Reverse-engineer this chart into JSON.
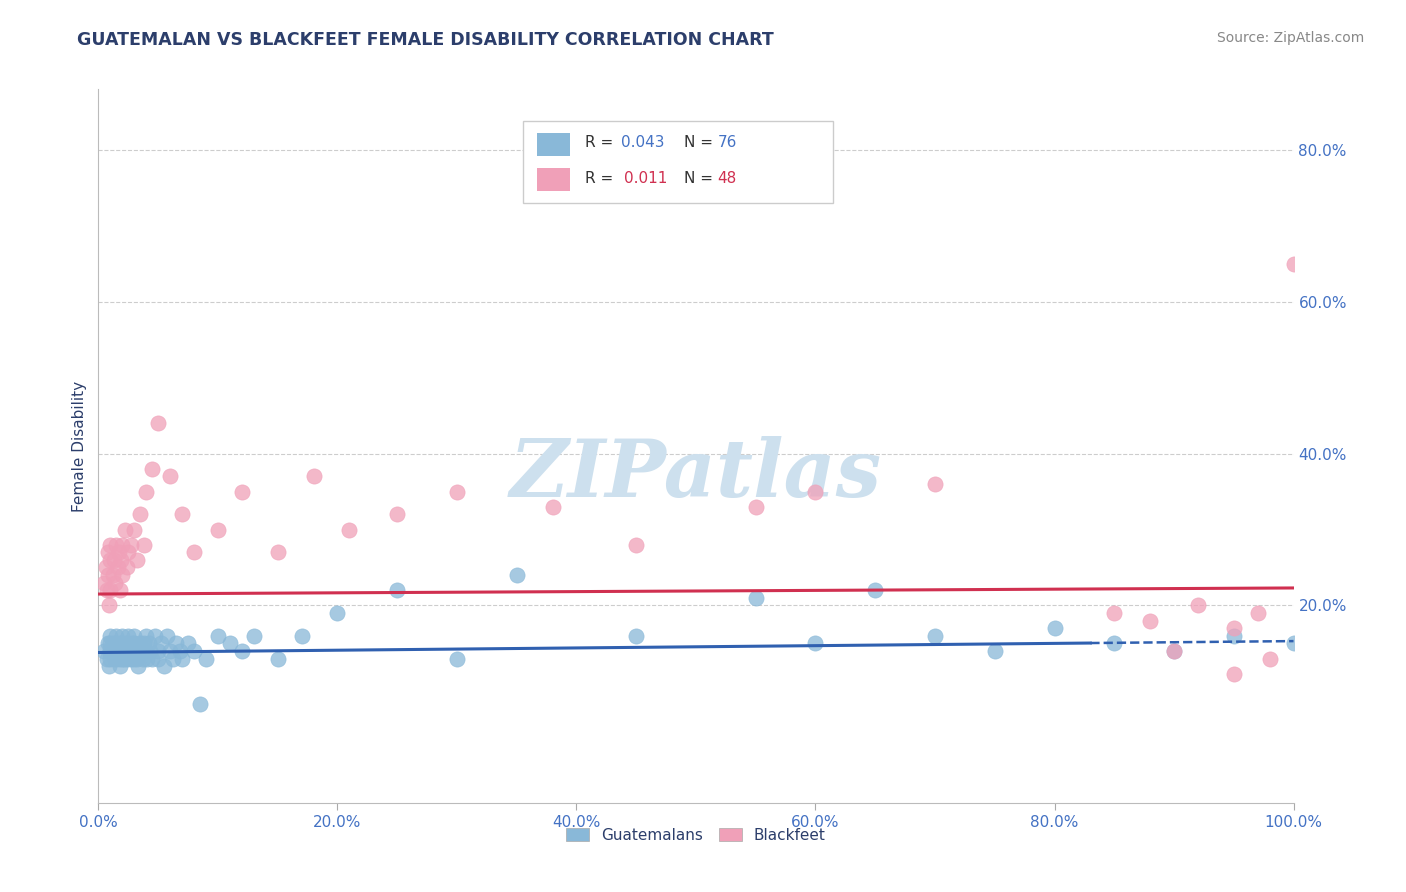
{
  "title": "GUATEMALAN VS BLACKFEET FEMALE DISABILITY CORRELATION CHART",
  "source_text": "Source: ZipAtlas.com",
  "ylabel": "Female Disability",
  "xlim": [
    0.0,
    1.0
  ],
  "ylim": [
    -0.06,
    0.88
  ],
  "xtick_labels": [
    "0.0%",
    "20.0%",
    "40.0%",
    "60.0%",
    "80.0%",
    "100.0%"
  ],
  "xtick_positions": [
    0.0,
    0.2,
    0.4,
    0.6,
    0.8,
    1.0
  ],
  "ytick_labels": [
    "20.0%",
    "40.0%",
    "60.0%",
    "80.0%"
  ],
  "ytick_positions": [
    0.2,
    0.4,
    0.6,
    0.8
  ],
  "background_color": "#ffffff",
  "grid_color": "#c8c8c8",
  "watermark_text": "ZIPatlas",
  "watermark_color": "#cde0ee",
  "guatemalan_color": "#89b8d8",
  "blackfeet_color": "#f0a0b8",
  "guatemalan_trend_color": "#3060b0",
  "blackfeet_trend_color": "#d03050",
  "title_color": "#2c3e6b",
  "axis_label_color": "#2c3e6b",
  "tick_color": "#4472c4",
  "legend_n_color1": "#4472c4",
  "legend_n_color2": "#d03050",
  "guatemalan_trend_intercept": 0.138,
  "guatemalan_trend_slope": 0.015,
  "guatemalan_trend_solid_end": 0.83,
  "blackfeet_trend_intercept": 0.215,
  "blackfeet_trend_slope": 0.008,
  "guatemalan_scatter_x": [
    0.005,
    0.007,
    0.008,
    0.009,
    0.01,
    0.01,
    0.01,
    0.01,
    0.01,
    0.012,
    0.013,
    0.014,
    0.015,
    0.015,
    0.016,
    0.017,
    0.018,
    0.018,
    0.019,
    0.02,
    0.02,
    0.02,
    0.02,
    0.021,
    0.022,
    0.023,
    0.024,
    0.025,
    0.026,
    0.027,
    0.028,
    0.029,
    0.03,
    0.03,
    0.03,
    0.031,
    0.032,
    0.033,
    0.034,
    0.035,
    0.036,
    0.037,
    0.038,
    0.04,
    0.04,
    0.041,
    0.042,
    0.043,
    0.045,
    0.047,
    0.05,
    0.05,
    0.052,
    0.055,
    0.057,
    0.06,
    0.062,
    0.065,
    0.068,
    0.07,
    0.075,
    0.08,
    0.085,
    0.09,
    0.1,
    0.11,
    0.12,
    0.13,
    0.15,
    0.17,
    0.2,
    0.25,
    0.3,
    0.35,
    0.45,
    0.55,
    0.6,
    0.65,
    0.7,
    0.75,
    0.8,
    0.85,
    0.9,
    0.95,
    1.0
  ],
  "guatemalan_scatter_y": [
    0.14,
    0.13,
    0.15,
    0.12,
    0.16,
    0.13,
    0.14,
    0.15,
    0.14,
    0.15,
    0.14,
    0.13,
    0.15,
    0.16,
    0.14,
    0.13,
    0.15,
    0.12,
    0.14,
    0.13,
    0.15,
    0.14,
    0.16,
    0.13,
    0.14,
    0.15,
    0.13,
    0.16,
    0.14,
    0.13,
    0.15,
    0.14,
    0.13,
    0.15,
    0.16,
    0.14,
    0.13,
    0.12,
    0.14,
    0.15,
    0.14,
    0.13,
    0.15,
    0.16,
    0.14,
    0.13,
    0.15,
    0.14,
    0.13,
    0.16,
    0.14,
    0.13,
    0.15,
    0.12,
    0.16,
    0.14,
    0.13,
    0.15,
    0.14,
    0.13,
    0.15,
    0.14,
    0.07,
    0.13,
    0.16,
    0.15,
    0.14,
    0.16,
    0.13,
    0.16,
    0.19,
    0.22,
    0.13,
    0.24,
    0.16,
    0.21,
    0.15,
    0.22,
    0.16,
    0.14,
    0.17,
    0.15,
    0.14,
    0.16,
    0.15
  ],
  "blackfeet_scatter_x": [
    0.005,
    0.006,
    0.007,
    0.008,
    0.008,
    0.009,
    0.01,
    0.01,
    0.01,
    0.012,
    0.013,
    0.014,
    0.015,
    0.016,
    0.017,
    0.018,
    0.019,
    0.02,
    0.02,
    0.022,
    0.024,
    0.025,
    0.027,
    0.03,
    0.032,
    0.035,
    0.038,
    0.04,
    0.045,
    0.05,
    0.06,
    0.07,
    0.08,
    0.1,
    0.12,
    0.15,
    0.18,
    0.21,
    0.25,
    0.3,
    0.38,
    0.45,
    0.55,
    0.6,
    0.7,
    0.85,
    0.88,
    0.9,
    0.92,
    0.95,
    0.95,
    0.97,
    0.98,
    1.0
  ],
  "blackfeet_scatter_y": [
    0.23,
    0.25,
    0.22,
    0.27,
    0.24,
    0.2,
    0.26,
    0.22,
    0.28,
    0.24,
    0.26,
    0.23,
    0.28,
    0.25,
    0.27,
    0.22,
    0.26,
    0.24,
    0.28,
    0.3,
    0.25,
    0.27,
    0.28,
    0.3,
    0.26,
    0.32,
    0.28,
    0.35,
    0.38,
    0.44,
    0.37,
    0.32,
    0.27,
    0.3,
    0.35,
    0.27,
    0.37,
    0.3,
    0.32,
    0.35,
    0.33,
    0.28,
    0.33,
    0.35,
    0.36,
    0.19,
    0.18,
    0.14,
    0.2,
    0.11,
    0.17,
    0.19,
    0.13,
    0.65
  ]
}
